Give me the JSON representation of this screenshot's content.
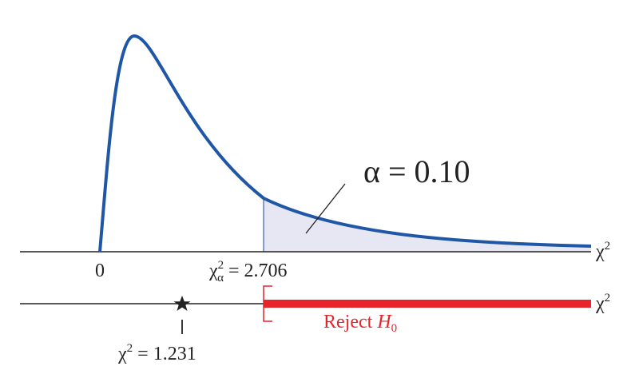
{
  "distribution": {
    "alpha_label": "α = 0.10",
    "origin_label": "0",
    "critical_label": {
      "base": "χ",
      "sup": "2",
      "sub": "α",
      "rest": "= 2.706"
    },
    "axis_label": {
      "base": "χ",
      "sup": "2"
    }
  },
  "decision": {
    "reject_label": {
      "text": "Reject",
      "var": "H",
      "sub": "0"
    },
    "statistic_label": {
      "base": "χ",
      "sup": "2",
      "rest": "= 1.231"
    },
    "axis_label": {
      "base": "χ",
      "sup": "2"
    }
  }
}
